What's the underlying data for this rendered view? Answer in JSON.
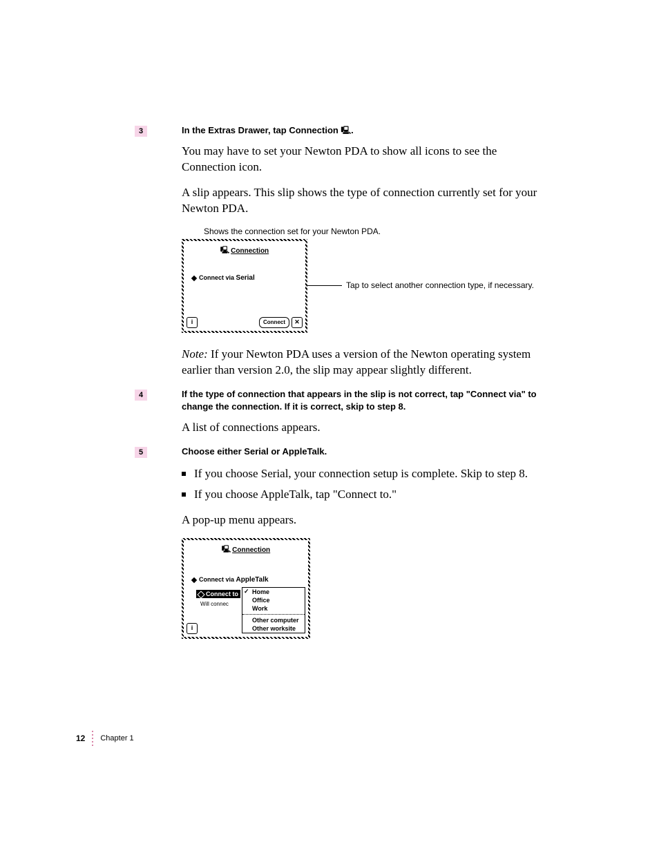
{
  "step3": {
    "number": "3",
    "heading_pre": "In the Extras Drawer, tap Connection ",
    "heading_post": ".",
    "body1": "You may have to set your Newton PDA to show all icons to see the Connection icon.",
    "body2": "A slip appears. This slip shows the type of connection currently set for your Newton PDA."
  },
  "fig1": {
    "caption_above": "Shows the connection set for your Newton PDA.",
    "slip_title": "Connection",
    "connect_via_label": "Connect via",
    "connect_via_value": "Serial",
    "connect_button": "Connect",
    "callout": "Tap to select another connection type, if necessary."
  },
  "note": {
    "label": "Note:",
    "text": "  If your Newton PDA uses a version of the Newton operating system earlier than version 2.0, the slip may appear slightly different."
  },
  "step4": {
    "number": "4",
    "heading": "If the type of connection that appears in the slip is not correct, tap \"Connect via\" to change the connection. If it is correct, skip to step 8.",
    "body": "A list of connections appears."
  },
  "step5": {
    "number": "5",
    "heading": "Choose either Serial or AppleTalk.",
    "bullets": [
      "If you choose Serial, your connection setup is complete. Skip to step 8.",
      "If you choose AppleTalk, tap \"Connect to.\""
    ],
    "body": "A pop-up menu appears."
  },
  "fig2": {
    "slip_title": "Connection",
    "connect_via_label": "Connect via",
    "connect_via_value": "AppleTalk",
    "connect_to_label": "Connect to",
    "will_connect": "Will connec",
    "menu": {
      "items_top": [
        "Home",
        "Office",
        "Work"
      ],
      "items_bottom": [
        "Other computer",
        "Other worksite"
      ],
      "checked": "Home"
    }
  },
  "footer": {
    "page_num": "12",
    "chapter": "Chapter 1"
  },
  "colors": {
    "badge_bg": "#f7d5e8",
    "dot": "#ce5a8a"
  }
}
